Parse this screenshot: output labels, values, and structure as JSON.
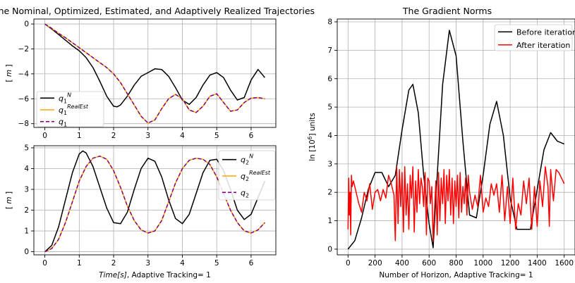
{
  "figure": {
    "left_title": "The Nominal, Optimized, Estimated, and Adaptively Realized Trajectories",
    "right_title": "The Gradient Norms"
  },
  "chart_data": [
    {
      "type": "line",
      "panel": "top-left",
      "ylabel": "[ m ]",
      "xlim": [
        -0.32,
        6.72
      ],
      "ylim": [
        -8.3,
        0.4
      ],
      "xticks": [
        0,
        1,
        2,
        3,
        4,
        5,
        6
      ],
      "yticks": [
        0,
        -2,
        -4,
        -6,
        -8
      ],
      "grid": true,
      "legend": "lower-left",
      "series": [
        {
          "name": "q1^N",
          "color": "#000000",
          "style": "solid",
          "x": [
            0,
            0.2,
            0.4,
            0.6,
            0.8,
            1.0,
            1.2,
            1.4,
            1.6,
            1.8,
            2.0,
            2.1,
            2.2,
            2.4,
            2.6,
            2.8,
            3.0,
            3.2,
            3.4,
            3.6,
            3.8,
            4.0,
            4.2,
            4.4,
            4.6,
            4.8,
            5.0,
            5.2,
            5.4,
            5.6,
            5.8,
            6.0,
            6.2,
            6.4
          ],
          "y": [
            0,
            -0.4,
            -0.85,
            -1.3,
            -1.75,
            -2.15,
            -2.7,
            -3.5,
            -4.6,
            -5.8,
            -6.6,
            -6.65,
            -6.5,
            -5.8,
            -4.9,
            -4.2,
            -3.9,
            -3.6,
            -3.65,
            -4.2,
            -5.1,
            -6.1,
            -6.45,
            -5.9,
            -4.9,
            -4.1,
            -3.9,
            -4.3,
            -5.3,
            -6.1,
            -5.9,
            -4.5,
            -3.65,
            -4.3
          ]
        },
        {
          "name": "q1^RealEst",
          "color": "#FFA500",
          "style": "solid",
          "x": [
            0,
            0.2,
            0.4,
            0.6,
            0.8,
            1.0,
            1.2,
            1.4,
            1.6,
            1.8,
            2.0,
            2.2,
            2.4,
            2.6,
            2.8,
            3.0,
            3.2,
            3.4,
            3.6,
            3.8,
            4.0,
            4.2,
            4.4,
            4.6,
            4.8,
            5.0,
            5.2,
            5.4,
            5.6,
            5.8,
            6.0,
            6.2,
            6.4
          ],
          "y": [
            0,
            -0.35,
            -0.75,
            -1.1,
            -1.5,
            -1.9,
            -2.3,
            -2.7,
            -3.1,
            -3.5,
            -4.0,
            -4.7,
            -5.6,
            -6.5,
            -7.4,
            -7.95,
            -7.7,
            -6.8,
            -6.0,
            -5.65,
            -6.0,
            -6.9,
            -7.1,
            -6.6,
            -5.8,
            -5.6,
            -6.3,
            -7.0,
            -6.9,
            -6.3,
            -5.95,
            -5.9,
            -6.0
          ]
        },
        {
          "name": "q1",
          "color": "#800080",
          "style": "dashed",
          "x": [
            0,
            0.2,
            0.4,
            0.6,
            0.8,
            1.0,
            1.2,
            1.4,
            1.6,
            1.8,
            2.0,
            2.2,
            2.4,
            2.6,
            2.8,
            3.0,
            3.2,
            3.4,
            3.6,
            3.8,
            4.0,
            4.2,
            4.4,
            4.6,
            4.8,
            5.0,
            5.2,
            5.4,
            5.6,
            5.8,
            6.0,
            6.2,
            6.4
          ],
          "y": [
            0,
            -0.35,
            -0.75,
            -1.1,
            -1.5,
            -1.9,
            -2.3,
            -2.7,
            -3.1,
            -3.5,
            -4.0,
            -4.7,
            -5.6,
            -6.5,
            -7.4,
            -7.95,
            -7.7,
            -6.8,
            -6.0,
            -5.65,
            -6.0,
            -6.9,
            -7.1,
            -6.6,
            -5.8,
            -5.6,
            -6.3,
            -7.0,
            -6.9,
            -6.3,
            -5.95,
            -5.9,
            -6.0
          ]
        }
      ]
    },
    {
      "type": "line",
      "panel": "bottom-left",
      "ylabel": "[ m ]",
      "xlabel": "Time[s], Adaptive Tracking= 1",
      "xlim": [
        -0.32,
        6.72
      ],
      "ylim": [
        -0.15,
        5.1
      ],
      "xticks": [
        0,
        1,
        2,
        3,
        4,
        5,
        6
      ],
      "yticks": [
        0,
        1,
        2,
        3,
        4,
        5
      ],
      "grid": true,
      "legend": "top-right",
      "series": [
        {
          "name": "q2^N",
          "color": "#000000",
          "style": "solid",
          "x": [
            0,
            0.2,
            0.4,
            0.6,
            0.8,
            1.0,
            1.1,
            1.2,
            1.4,
            1.6,
            1.8,
            2.0,
            2.2,
            2.4,
            2.6,
            2.8,
            3.0,
            3.2,
            3.4,
            3.6,
            3.8,
            4.0,
            4.2,
            4.4,
            4.6,
            4.8,
            5.0,
            5.2,
            5.4,
            5.6,
            5.8,
            6.0,
            6.2,
            6.4
          ],
          "y": [
            0,
            0.3,
            1.2,
            2.5,
            3.8,
            4.7,
            4.85,
            4.75,
            4.1,
            3.1,
            2.1,
            1.4,
            1.35,
            1.9,
            3.0,
            4.0,
            4.5,
            4.35,
            3.6,
            2.5,
            1.6,
            1.35,
            1.8,
            2.8,
            3.8,
            4.4,
            4.45,
            3.9,
            3.0,
            2.0,
            1.55,
            1.8,
            2.6,
            3.4
          ]
        },
        {
          "name": "q2^RealEst",
          "color": "#FFA500",
          "style": "solid",
          "x": [
            0,
            0.2,
            0.4,
            0.6,
            0.8,
            1.0,
            1.2,
            1.4,
            1.6,
            1.8,
            2.0,
            2.2,
            2.4,
            2.6,
            2.8,
            3.0,
            3.2,
            3.4,
            3.6,
            3.8,
            4.0,
            4.2,
            4.4,
            4.6,
            4.8,
            5.0,
            5.2,
            5.4,
            5.6,
            5.8,
            6.0,
            6.2,
            6.4
          ],
          "y": [
            0,
            0.15,
            0.6,
            1.4,
            2.4,
            3.4,
            4.1,
            4.5,
            4.6,
            4.45,
            3.9,
            3.1,
            2.2,
            1.5,
            1.05,
            0.9,
            1.0,
            1.5,
            2.4,
            3.3,
            4.0,
            4.4,
            4.5,
            4.45,
            4.2,
            3.6,
            2.8,
            2.0,
            1.4,
            1.0,
            0.9,
            1.05,
            1.4
          ]
        },
        {
          "name": "q2",
          "color": "#800080",
          "style": "dashed",
          "x": [
            0,
            0.2,
            0.4,
            0.6,
            0.8,
            1.0,
            1.2,
            1.4,
            1.6,
            1.8,
            2.0,
            2.2,
            2.4,
            2.6,
            2.8,
            3.0,
            3.2,
            3.4,
            3.6,
            3.8,
            4.0,
            4.2,
            4.4,
            4.6,
            4.8,
            5.0,
            5.2,
            5.4,
            5.6,
            5.8,
            6.0,
            6.2,
            6.4
          ],
          "y": [
            0,
            0.15,
            0.6,
            1.4,
            2.4,
            3.4,
            4.1,
            4.5,
            4.6,
            4.45,
            3.9,
            3.1,
            2.2,
            1.5,
            1.05,
            0.9,
            1.0,
            1.5,
            2.4,
            3.3,
            4.0,
            4.4,
            4.5,
            4.45,
            4.2,
            3.6,
            2.8,
            2.0,
            1.4,
            1.0,
            0.9,
            1.05,
            1.4
          ]
        }
      ]
    },
    {
      "type": "line",
      "panel": "right",
      "title": "The Gradient Norms",
      "ylabel": "ln [10^6] units",
      "xlabel": "Number of Horizon, Adaptive Tracking= 1",
      "xlim": [
        -80,
        1680
      ],
      "ylim": [
        -0.2,
        8.1
      ],
      "xticks": [
        0,
        200,
        400,
        600,
        800,
        1000,
        1200,
        1400,
        1600
      ],
      "yticks": [
        0,
        1,
        2,
        3,
        4,
        5,
        6,
        7,
        8
      ],
      "grid": true,
      "legend": "top-right",
      "series": [
        {
          "name": "Before iteration",
          "color": "#000000",
          "style": "solid",
          "x": [
            0,
            50,
            100,
            150,
            200,
            250,
            300,
            350,
            400,
            450,
            480,
            520,
            560,
            600,
            630,
            650,
            700,
            750,
            800,
            850,
            900,
            950,
            1000,
            1050,
            1100,
            1150,
            1200,
            1250,
            1300,
            1350,
            1400,
            1450,
            1500,
            1550,
            1600
          ],
          "y": [
            0,
            0.3,
            1.1,
            2.1,
            2.7,
            2.7,
            2.2,
            2.6,
            4.2,
            5.6,
            5.8,
            4.8,
            2.6,
            0.9,
            0.05,
            1.8,
            5.8,
            7.7,
            6.8,
            3.8,
            1.2,
            1.1,
            2.6,
            4.4,
            5.2,
            4.0,
            1.8,
            0.7,
            0.7,
            0.7,
            2.1,
            3.5,
            4.1,
            3.8,
            3.7
          ]
        },
        {
          "name": "After iteration",
          "color": "#FF0000",
          "style": "solid",
          "x": [
            0,
            5,
            10,
            15,
            20,
            25,
            30,
            40,
            60,
            80,
            100,
            120,
            140,
            160,
            180,
            200,
            220,
            240,
            260,
            280,
            300,
            320,
            340,
            350,
            360,
            370,
            380,
            390,
            400,
            410,
            420,
            430,
            440,
            450,
            460,
            470,
            480,
            490,
            500,
            510,
            520,
            530,
            540,
            550,
            560,
            570,
            580,
            590,
            600,
            610,
            620,
            630,
            640,
            650,
            660,
            670,
            680,
            690,
            700,
            710,
            720,
            730,
            740,
            750,
            760,
            770,
            780,
            790,
            800,
            810,
            820,
            830,
            840,
            850,
            860,
            870,
            880,
            890,
            900,
            920,
            940,
            960,
            980,
            1000,
            1020,
            1040,
            1060,
            1080,
            1100,
            1120,
            1140,
            1160,
            1180,
            1200,
            1220,
            1240,
            1260,
            1280,
            1300,
            1320,
            1340,
            1360,
            1380,
            1400,
            1420,
            1440,
            1460,
            1480,
            1490,
            1500,
            1520,
            1540,
            1560,
            1580,
            1600
          ],
          "y": [
            0.7,
            2.5,
            1.2,
            2.0,
            0.5,
            2.6,
            2.2,
            2.4,
            2.0,
            1.6,
            1.3,
            2.0,
            1.7,
            2.3,
            1.4,
            2.0,
            2.1,
            1.7,
            2.1,
            1.8,
            2.6,
            2.3,
            1.9,
            0.3,
            2.9,
            0.9,
            2.8,
            1.5,
            2.7,
            0.6,
            2.9,
            1.2,
            2.3,
            0.7,
            2.6,
            1.8,
            2.9,
            0.6,
            2.4,
            1.3,
            2.8,
            1.6,
            2.5,
            2.2,
            1.5,
            2.7,
            0.5,
            2.5,
            2.4,
            1.6,
            2.2,
            0.3,
            1.4,
            2.4,
            0.5,
            2.7,
            1.0,
            2.5,
            1.6,
            2.8,
            0.9,
            2.6,
            1.7,
            2.8,
            1.2,
            2.5,
            0.9,
            2.4,
            1.5,
            2.6,
            1.1,
            2.7,
            1.3,
            2.2,
            1.6,
            2.5,
            1.2,
            2.6,
            2.0,
            1.4,
            1.9,
            1.5,
            2.6,
            1.3,
            1.8,
            1.5,
            2.3,
            1.9,
            2.3,
            1.3,
            2.6,
            1.0,
            2.2,
            0.9,
            2.5,
            0.7,
            1.6,
            1.2,
            2.4,
            1.6,
            2.5,
            0.7,
            2.2,
            0.8,
            2.4,
            1.5,
            2.9,
            2.2,
            0.8,
            2.8,
            1.7,
            2.8,
            2.7,
            2.5,
            2.3
          ]
        }
      ]
    }
  ]
}
